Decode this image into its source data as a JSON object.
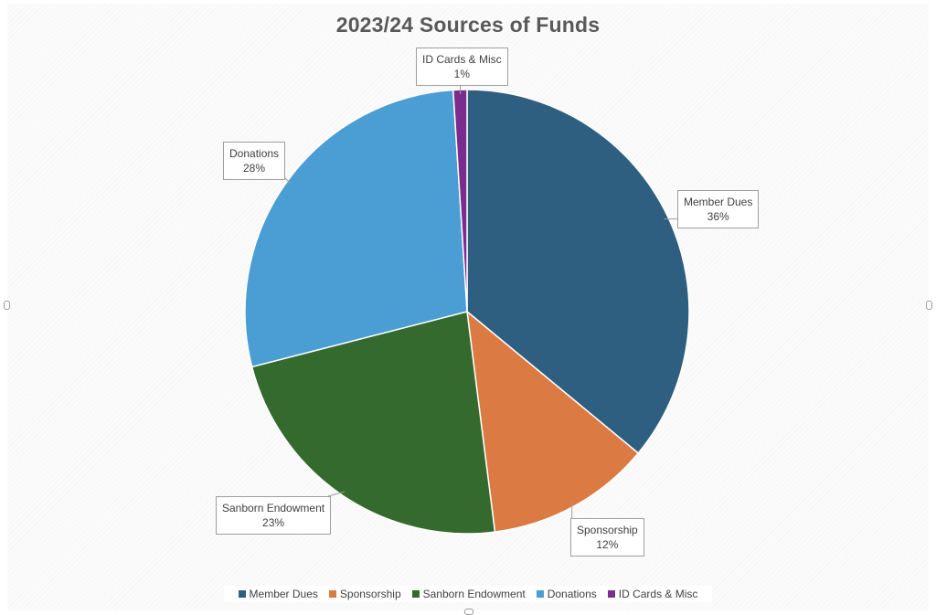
{
  "chart_data": {
    "type": "pie",
    "title": "2023/24 Sources of Funds",
    "slices": [
      {
        "name": "Member Dues",
        "value": 36,
        "label": "36%",
        "color": "#2e5f80"
      },
      {
        "name": "Sponsorship",
        "value": 12,
        "label": "12%",
        "color": "#dc7a43"
      },
      {
        "name": "Sanborn Endowment",
        "value": 23,
        "label": "23%",
        "color": "#346a2e"
      },
      {
        "name": "Donations",
        "value": 28,
        "label": "28%",
        "color": "#4a9ed3"
      },
      {
        "name": "ID Cards & Misc",
        "value": 1,
        "label": "1%",
        "color": "#7b2d8e"
      }
    ],
    "legend_position": "bottom",
    "start_angle_deg": 0,
    "direction": "clockwise"
  }
}
